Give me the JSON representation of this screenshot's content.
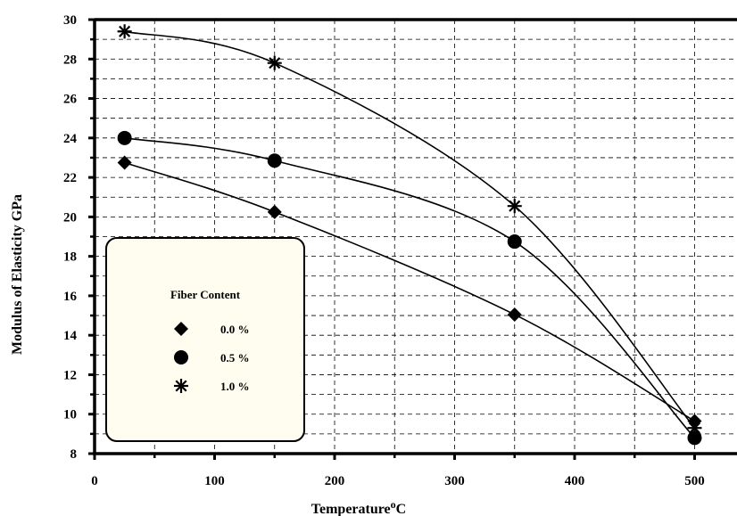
{
  "chart_data": {
    "type": "line",
    "xlabel": "Temperature",
    "xlabel_superscript": "o",
    "xlabel_unit": "C",
    "ylabel": "Modulus of Elasticity GPa",
    "xlim": [
      0,
      520
    ],
    "ylim": [
      8,
      30
    ],
    "xticks": [
      0,
      100,
      200,
      300,
      400,
      500
    ],
    "yticks": [
      8,
      10,
      12,
      14,
      16,
      18,
      20,
      22,
      24,
      26,
      28,
      30
    ],
    "grid": true,
    "legend": {
      "title": "Fiber Content",
      "position": "bottom-left"
    },
    "series": [
      {
        "name": "0.0 %",
        "marker": "diamond",
        "x": [
          25,
          150,
          350,
          500
        ],
        "y": [
          22.75,
          20.25,
          15.05,
          9.65
        ]
      },
      {
        "name": "0.5 %",
        "marker": "circle",
        "x": [
          25,
          150,
          350,
          500
        ],
        "y": [
          24.0,
          22.85,
          18.75,
          8.8
        ]
      },
      {
        "name": "1.0 %",
        "marker": "asterisk",
        "x": [
          25,
          150,
          350,
          500
        ],
        "y": [
          29.4,
          27.8,
          20.55,
          9.3
        ]
      }
    ]
  }
}
